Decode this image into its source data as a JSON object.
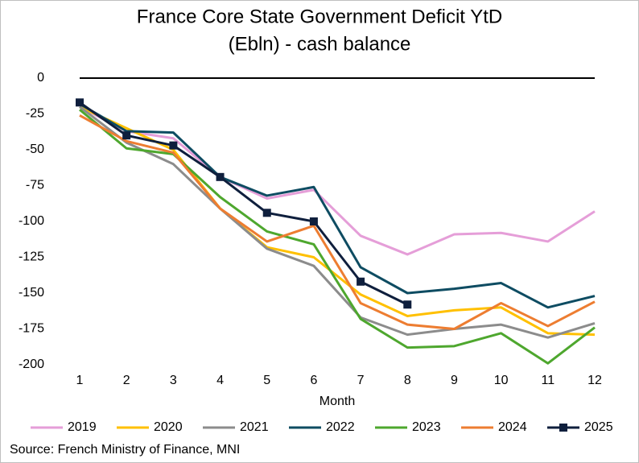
{
  "chart_data": {
    "type": "line",
    "title": "France Core State Government Deficit YtD",
    "subtitle": "(Ebln) - cash balance",
    "x_label": "Month",
    "source": "Source: French Ministry of Finance, MNI",
    "x": [
      1,
      2,
      3,
      4,
      5,
      6,
      7,
      8,
      9,
      10,
      11,
      12
    ],
    "xlim": [
      1,
      12
    ],
    "xticks": [
      1,
      2,
      3,
      4,
      5,
      6,
      7,
      8,
      9,
      10,
      11,
      12
    ],
    "ylim": [
      -200,
      0
    ],
    "yticks": [
      0,
      -25,
      -50,
      -75,
      -100,
      -125,
      -150,
      -175,
      -200
    ],
    "grid": false,
    "legend": "bottom",
    "series": [
      {
        "name": "2019",
        "color": "#e59ed8",
        "values": [
          -20,
          -37,
          -42,
          -69,
          -84,
          -78,
          -110,
          -123,
          -109,
          -108,
          -114,
          -93
        ]
      },
      {
        "name": "2020",
        "color": "#ffc000",
        "values": [
          -20,
          -35,
          -50,
          -91,
          -118,
          -125,
          -151,
          -166,
          -162,
          -160,
          -178,
          -179
        ]
      },
      {
        "name": "2021",
        "color": "#8c8c8c",
        "values": [
          -20,
          -45,
          -60,
          -91,
          -119,
          -131,
          -167,
          -179,
          -175,
          -172,
          -181,
          -171
        ]
      },
      {
        "name": "2022",
        "color": "#0e4c62",
        "values": [
          -18,
          -37,
          -38,
          -69,
          -82,
          -76,
          -132,
          -150,
          -147,
          -143,
          -160,
          -152
        ]
      },
      {
        "name": "2023",
        "color": "#4ea72e",
        "values": [
          -22,
          -49,
          -53,
          -83,
          -107,
          -116,
          -168,
          -188,
          -187,
          -178,
          -199,
          -174
        ]
      },
      {
        "name": "2024",
        "color": "#ed7d31",
        "values": [
          -26,
          -44,
          -52,
          -91,
          -114,
          -103,
          -157,
          -172,
          -175,
          -157,
          -173,
          -156
        ]
      },
      {
        "name": "2025",
        "color": "#0f1f3d",
        "marker": "square",
        "values": [
          -17,
          -40,
          -47,
          -69,
          -94,
          -100,
          -142,
          -158,
          null,
          null,
          null,
          null
        ]
      }
    ]
  }
}
